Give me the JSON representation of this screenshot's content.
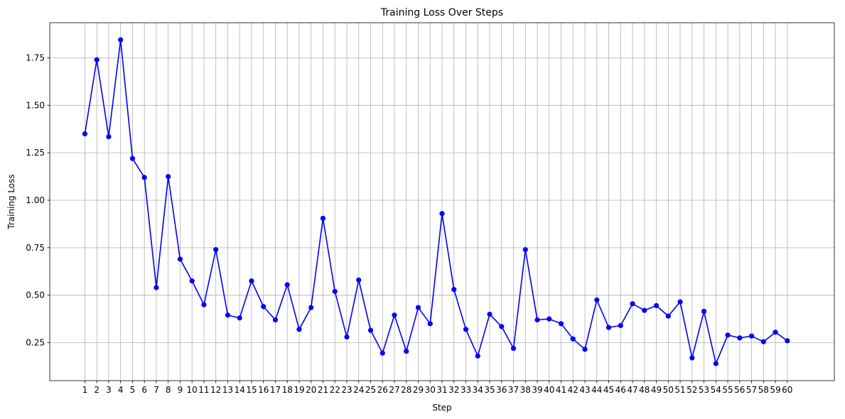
{
  "chart_data": {
    "type": "line",
    "title": "Training Loss Over Steps",
    "xlabel": "Step",
    "ylabel": "Training Loss",
    "grid": true,
    "x": [
      1,
      2,
      3,
      4,
      5,
      6,
      7,
      8,
      9,
      10,
      11,
      12,
      13,
      14,
      15,
      16,
      17,
      18,
      19,
      20,
      21,
      22,
      23,
      24,
      25,
      26,
      27,
      28,
      29,
      30,
      31,
      32,
      33,
      34,
      35,
      36,
      37,
      38,
      39,
      40,
      41,
      42,
      43,
      44,
      45,
      46,
      47,
      48,
      49,
      50,
      51,
      52,
      53,
      54,
      55,
      56,
      57,
      58,
      59,
      60
    ],
    "series": [
      {
        "color": "#0000ff",
        "marker": "circle",
        "values": [
          1.35,
          1.74,
          1.335,
          1.845,
          1.22,
          1.12,
          0.54,
          1.125,
          0.69,
          0.575,
          0.45,
          0.74,
          0.395,
          0.38,
          0.575,
          0.44,
          0.37,
          0.555,
          0.32,
          0.435,
          0.905,
          0.52,
          0.28,
          0.58,
          0.315,
          0.195,
          0.395,
          0.205,
          0.435,
          0.35,
          0.93,
          0.53,
          0.32,
          0.18,
          0.4,
          0.335,
          0.22,
          0.74,
          0.37,
          0.375,
          0.35,
          0.27,
          0.215,
          0.475,
          0.33,
          0.34,
          0.455,
          0.42,
          0.445,
          0.39,
          0.465,
          0.17,
          0.415,
          0.14,
          0.29,
          0.275,
          0.285,
          0.255,
          0.305,
          0.26
        ]
      }
    ],
    "xticks": [
      "1",
      "2",
      "3",
      "4",
      "5",
      "6",
      "7",
      "8",
      "9",
      "10",
      "11",
      "12",
      "13",
      "14",
      "15",
      "16",
      "17",
      "18",
      "19",
      "20",
      "21",
      "22",
      "23",
      "24",
      "25",
      "26",
      "27",
      "28",
      "29",
      "30",
      "31",
      "32",
      "33",
      "34",
      "35",
      "36",
      "37",
      "38",
      "39",
      "40",
      "41",
      "42",
      "43",
      "44",
      "45",
      "46",
      "47",
      "48",
      "49",
      "50",
      "51",
      "52",
      "53",
      "54",
      "55",
      "56",
      "57",
      "58",
      "59",
      "60"
    ],
    "yticks": [
      0.25,
      0.5,
      0.75,
      1.0,
      1.25,
      1.5,
      1.75
    ],
    "ytick_labels": [
      "0.25",
      "0.50",
      "0.75",
      "1.00",
      "1.25",
      "1.50",
      "1.75"
    ],
    "ylim": [
      0.05,
      1.935
    ],
    "xlim": [
      -1.95,
      63.95
    ]
  }
}
